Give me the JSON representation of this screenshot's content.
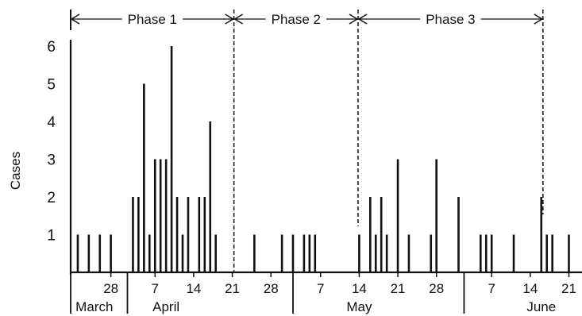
{
  "chart_data": {
    "type": "bar",
    "ylabel": "Cases",
    "ylim": [
      0,
      6
    ],
    "yticks": [
      "1",
      "2",
      "3",
      "4",
      "5",
      "6"
    ],
    "x_tick_labels": [
      {
        "label": "28",
        "day": 7
      },
      {
        "label": "7",
        "day": 15
      },
      {
        "label": "14",
        "day": 22
      },
      {
        "label": "21",
        "day": 29
      },
      {
        "label": "28",
        "day": 36
      },
      {
        "label": "7",
        "day": 45
      },
      {
        "label": "14",
        "day": 52
      },
      {
        "label": "21",
        "day": 59
      },
      {
        "label": "28",
        "day": 66
      },
      {
        "label": "7",
        "day": 76
      },
      {
        "label": "14",
        "day": 83
      },
      {
        "label": "21",
        "day": 90
      }
    ],
    "month_dividers": [
      10,
      40,
      71
    ],
    "months": [
      {
        "label": "March",
        "day": 4
      },
      {
        "label": "April",
        "day": 17
      },
      {
        "label": "May",
        "day": 52
      },
      {
        "label": "June",
        "day": 85
      }
    ],
    "phases": [
      {
        "label": "Phase 1",
        "start": 0,
        "end": 29.3
      },
      {
        "label": "Phase 2",
        "start": 29.3,
        "end": 51.8
      },
      {
        "label": "Phase 3",
        "start": 51.8,
        "end": 85.3
      }
    ],
    "phase_boundaries": [
      29.3,
      51.8,
      85.3
    ],
    "bars": [
      {
        "day": 1,
        "value": 1
      },
      {
        "day": 3,
        "value": 1
      },
      {
        "day": 5,
        "value": 1
      },
      {
        "day": 7,
        "value": 1
      },
      {
        "day": 11,
        "value": 2
      },
      {
        "day": 12,
        "value": 2
      },
      {
        "day": 13,
        "value": 5
      },
      {
        "day": 14,
        "value": 1
      },
      {
        "day": 15,
        "value": 3
      },
      {
        "day": 16,
        "value": 3
      },
      {
        "day": 17,
        "value": 3
      },
      {
        "day": 18,
        "value": 6
      },
      {
        "day": 19,
        "value": 2
      },
      {
        "day": 20,
        "value": 1
      },
      {
        "day": 21,
        "value": 2
      },
      {
        "day": 23,
        "value": 2
      },
      {
        "day": 24,
        "value": 2
      },
      {
        "day": 25,
        "value": 4
      },
      {
        "day": 26,
        "value": 1
      },
      {
        "day": 33,
        "value": 1
      },
      {
        "day": 38,
        "value": 1
      },
      {
        "day": 40,
        "value": 1
      },
      {
        "day": 42,
        "value": 1
      },
      {
        "day": 43,
        "value": 1
      },
      {
        "day": 44,
        "value": 1
      },
      {
        "day": 52,
        "value": 1
      },
      {
        "day": 54,
        "value": 2
      },
      {
        "day": 55,
        "value": 1
      },
      {
        "day": 56,
        "value": 2
      },
      {
        "day": 57,
        "value": 1
      },
      {
        "day": 59,
        "value": 3
      },
      {
        "day": 61,
        "value": 1
      },
      {
        "day": 65,
        "value": 1
      },
      {
        "day": 66,
        "value": 3
      },
      {
        "day": 70,
        "value": 2
      },
      {
        "day": 74,
        "value": 1
      },
      {
        "day": 75,
        "value": 1
      },
      {
        "day": 76,
        "value": 1
      },
      {
        "day": 80,
        "value": 1
      },
      {
        "day": 85,
        "value": 2
      },
      {
        "day": 86,
        "value": 1
      },
      {
        "day": 87,
        "value": 1
      },
      {
        "day": 90,
        "value": 1
      }
    ]
  }
}
